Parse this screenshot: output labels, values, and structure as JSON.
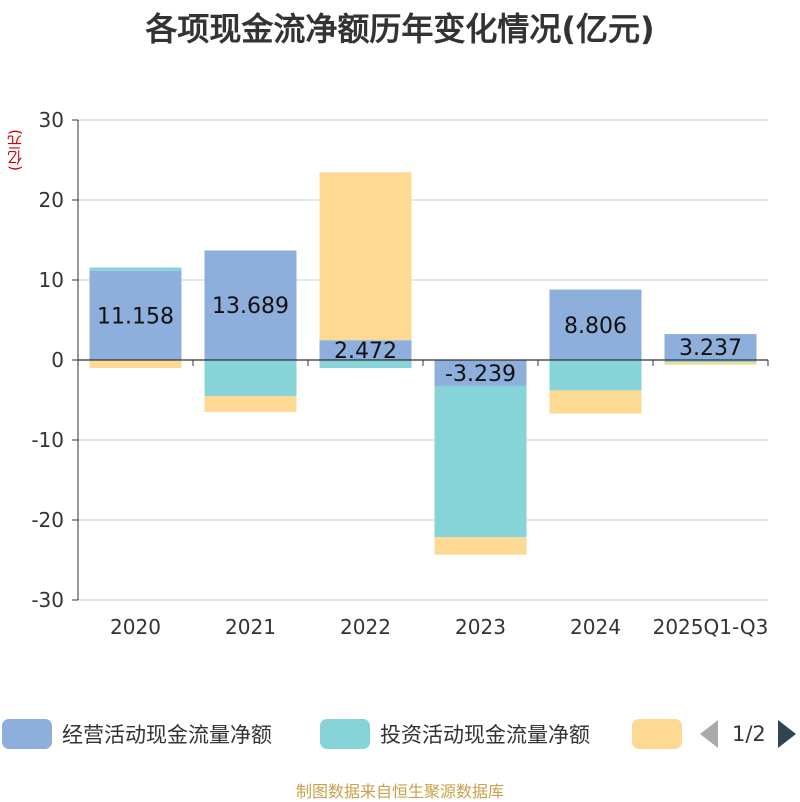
{
  "chart_data": {
    "type": "bar",
    "stacked": true,
    "title": "各项现金流净额历年变化情况(亿元)",
    "ylabel": "(亿元)",
    "xlabel": "",
    "ylim": [
      -30,
      30
    ],
    "yticks": [
      30,
      20,
      10,
      0,
      -10,
      -20,
      -30
    ],
    "grid": true,
    "categories": [
      "2020",
      "2021",
      "2022",
      "2023",
      "2024",
      "2025Q1-Q3"
    ],
    "series": [
      {
        "name": "经营活动现金流量净额",
        "color": "#8eaedb",
        "values": [
          11.158,
          13.689,
          2.472,
          -3.239,
          8.806,
          3.237
        ],
        "labels": [
          "11.158",
          "13.689",
          "2.472",
          "-3.239",
          "8.806",
          "3.237"
        ]
      },
      {
        "name": "投资活动现金流量净额",
        "color": "#86d4d8",
        "values": [
          0.4,
          -4.5,
          -1.0,
          -18.9,
          -3.8,
          -0.3
        ]
      },
      {
        "name": "",
        "color": "#fed994",
        "values": [
          -1.0,
          -2.0,
          21.0,
          -2.2,
          -2.9,
          -0.3
        ]
      }
    ],
    "legend_position": "bottom"
  },
  "legend": {
    "items": [
      {
        "label": "经营活动现金流量净额",
        "color": "#8eaedb"
      },
      {
        "label": "投资活动现金流量净额",
        "color": "#86d4d8"
      },
      {
        "label": "",
        "color": "#fed994"
      }
    ],
    "page": "1/2"
  },
  "footer": {
    "source": "制图数据来自恒生聚源数据库"
  }
}
